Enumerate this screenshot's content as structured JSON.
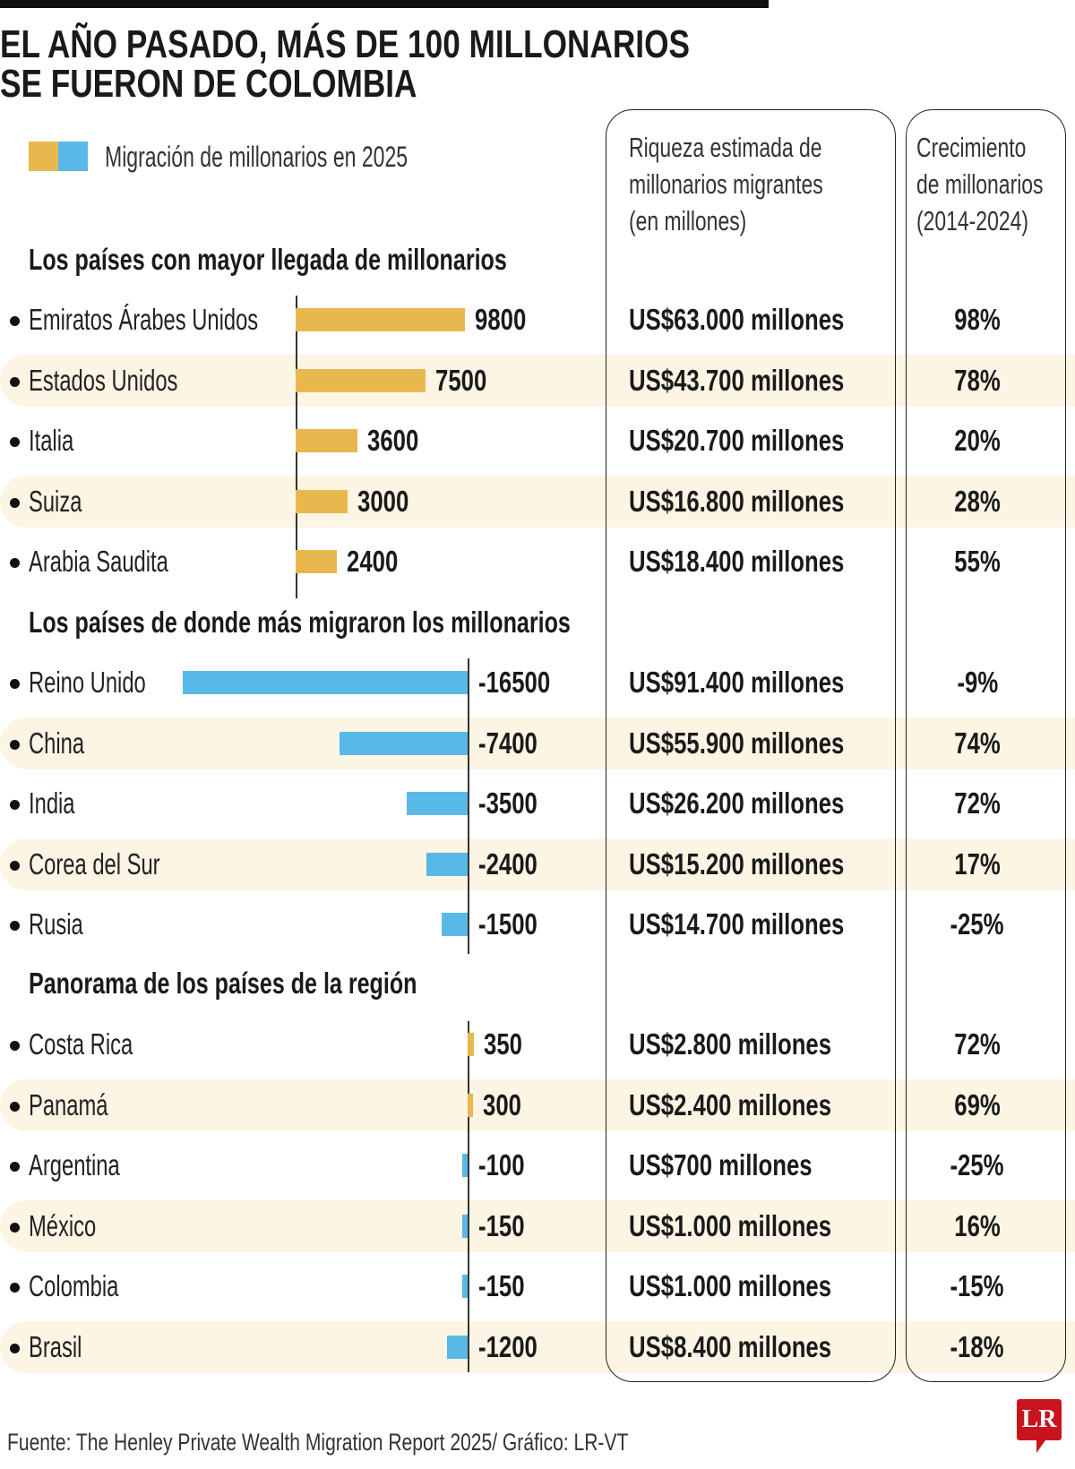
{
  "title_lines": [
    "EL AÑO PASADO, MÁS DE 100 MILLONARIOS",
    "SE FUERON DE COLOMBIA"
  ],
  "footer": "Fuente: The Henley Private Wealth Migration Report 2025/ Gráfico: LR-VT",
  "logo": "LR",
  "chart_data": {
    "type": "bar",
    "orientation": "horizontal",
    "legend": "Migración de millonarios en 2025",
    "colors": {
      "positive": "#e8b84f",
      "negative": "#58b9e6",
      "stripe": "#fdf5e4"
    },
    "column_headers": {
      "wealth": [
        "Riqueza estimada de",
        "millonarios migrantes",
        "(en millones)"
      ],
      "growth": [
        "Crecimiento",
        "de millonarios",
        "(2014-2024)"
      ]
    },
    "sections": [
      {
        "title": "Los países con mayor llegada de millonarios",
        "rows": [
          {
            "country": "Emiratos Árabes Unidos",
            "value": 9800,
            "label": "9800",
            "wealth": "US$63.000 millones",
            "growth": "98%"
          },
          {
            "country": "Estados Unidos",
            "value": 7500,
            "label": "7500",
            "wealth": "US$43.700 millones",
            "growth": "78%"
          },
          {
            "country": "Italia",
            "value": 3600,
            "label": "3600",
            "wealth": "US$20.700 millones",
            "growth": "20%"
          },
          {
            "country": "Suiza",
            "value": 3000,
            "label": "3000",
            "wealth": "US$16.800 millones",
            "growth": "28%"
          },
          {
            "country": "Arabia Saudita",
            "value": 2400,
            "label": "2400",
            "wealth": "US$18.400 millones",
            "growth": "55%"
          }
        ]
      },
      {
        "title": "Los países de donde más migraron los millonarios",
        "rows": [
          {
            "country": "Reino Unido",
            "value": -16500,
            "label": "-16500",
            "wealth": "US$91.400 millones",
            "growth": "-9%"
          },
          {
            "country": "China",
            "value": -7400,
            "label": "-7400",
            "wealth": "US$55.900 millones",
            "growth": "74%"
          },
          {
            "country": "India",
            "value": -3500,
            "label": "-3500",
            "wealth": "US$26.200 millones",
            "growth": "72%"
          },
          {
            "country": "Corea del Sur",
            "value": -2400,
            "label": "-2400",
            "wealth": "US$15.200 millones",
            "growth": "17%"
          },
          {
            "country": "Rusia",
            "value": -1500,
            "label": "-1500",
            "wealth": "US$14.700 millones",
            "growth": "-25%"
          }
        ]
      },
      {
        "title": "Panorama de los países de la región",
        "rows": [
          {
            "country": "Costa Rica",
            "value": 350,
            "label": "350",
            "wealth": "US$2.800 millones",
            "growth": "72%"
          },
          {
            "country": "Panamá",
            "value": 300,
            "label": "300",
            "wealth": "US$2.400 millones",
            "growth": "69%"
          },
          {
            "country": "Argentina",
            "value": -100,
            "label": "-100",
            "wealth": "US$700 millones",
            "growth": "-25%"
          },
          {
            "country": "México",
            "value": -150,
            "label": "-150",
            "wealth": "US$1.000 millones",
            "growth": "16%"
          },
          {
            "country": "Colombia",
            "value": -150,
            "label": "-150",
            "wealth": "US$1.000 millones",
            "growth": "-15%"
          },
          {
            "country": "Brasil",
            "value": -1200,
            "label": "-1200",
            "wealth": "US$8.400 millones",
            "growth": "-18%"
          }
        ]
      }
    ]
  }
}
